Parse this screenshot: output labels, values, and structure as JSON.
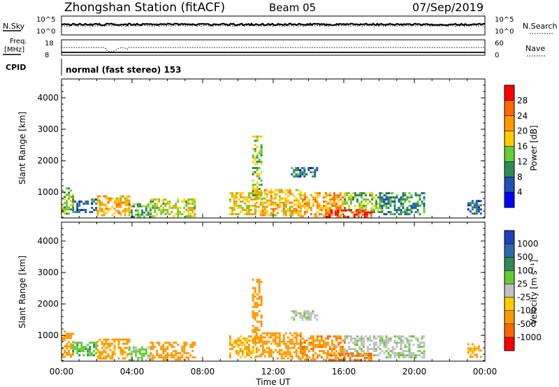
{
  "header": {
    "station": "Zhongshan Station (fitACF)",
    "beam": "Beam 05",
    "date": "07/Sep/2019"
  },
  "noise_panel": {
    "left_label": "N.Sky",
    "right_label": "N.Search",
    "y_top": "10^5",
    "y_bottom": "10^0",
    "right_top": "10^5",
    "right_bottom": "10^0"
  },
  "freq_panel": {
    "label_1": "Freq.",
    "label_2": "[MHz]",
    "y_top": "18",
    "y_bottom": "8",
    "right_label": "Nave",
    "right_top": "60",
    "right_bottom": "0"
  },
  "cpid": {
    "label": "CPID",
    "value": "normal (fast stereo) 153"
  },
  "axes": {
    "ylabel": "Slant Range [km]",
    "xlabel": "Time UT",
    "y_ticks": [
      "1000",
      "2000",
      "3000",
      "4000"
    ],
    "x_ticks": [
      "00:00",
      "04:00",
      "08:00",
      "12:00",
      "16:00",
      "20:00",
      "00:00"
    ]
  },
  "power_scale": {
    "label": "Power [dB]",
    "ticks": [
      "4",
      "8",
      "12",
      "16",
      "20",
      "24",
      "28"
    ],
    "colors": [
      "#0000ff",
      "#2050b8",
      "#2e8b57",
      "#66cc33",
      "#ffcc00",
      "#ff9900",
      "#ff6600",
      "#ff0000"
    ]
  },
  "velocity_scale": {
    "label": "Velocity [m s⁻¹]",
    "ticks": [
      "1000",
      "500",
      "100",
      "25",
      "-25",
      "-100",
      "-500",
      "-1000"
    ],
    "colors": [
      "#2040c0",
      "#2e6aa8",
      "#2e8b57",
      "#66cc33",
      "#c0c0c0",
      "#ffcc00",
      "#ff9900",
      "#ff6600",
      "#ff0000"
    ]
  },
  "chart_data": {
    "type": "heatmap",
    "x_range_hours": [
      0,
      24
    ],
    "y_range_km": [
      180,
      4600
    ],
    "panels": [
      "Power [dB]",
      "Velocity [m s⁻¹]"
    ],
    "echo_regions": [
      {
        "t_start": 0.0,
        "t_end": 0.6,
        "r_min": 350,
        "r_max": 1150,
        "power": 14,
        "velocity": -200
      },
      {
        "t_start": 0.6,
        "t_end": 2.0,
        "r_min": 350,
        "r_max": 800,
        "power": 8,
        "velocity": 80
      },
      {
        "t_start": 2.0,
        "t_end": 3.8,
        "r_min": 250,
        "r_max": 900,
        "power": 20,
        "velocity": -150
      },
      {
        "t_start": 3.8,
        "t_end": 5.0,
        "r_min": 250,
        "r_max": 650,
        "power": 12,
        "velocity": 40
      },
      {
        "t_start": 5.0,
        "t_end": 7.5,
        "r_min": 250,
        "r_max": 800,
        "power": 16,
        "velocity": -300
      },
      {
        "t_start": 9.5,
        "t_end": 11.0,
        "r_min": 300,
        "r_max": 1000,
        "power": 18,
        "velocity": -120
      },
      {
        "t_start": 10.8,
        "t_end": 11.3,
        "r_min": 800,
        "r_max": 2800,
        "power": 14,
        "velocity": -200
      },
      {
        "t_start": 11.0,
        "t_end": 13.5,
        "r_min": 300,
        "r_max": 1100,
        "power": 20,
        "velocity": -250
      },
      {
        "t_start": 13.0,
        "t_end": 14.5,
        "r_min": 1500,
        "r_max": 1800,
        "power": 8,
        "velocity": 10
      },
      {
        "t_start": 13.5,
        "t_end": 16.0,
        "r_min": 250,
        "r_max": 1000,
        "power": 22,
        "velocity": -400
      },
      {
        "t_start": 16.0,
        "t_end": 18.0,
        "r_min": 350,
        "r_max": 1000,
        "power": 14,
        "velocity": 5
      },
      {
        "t_start": 15.0,
        "t_end": 17.5,
        "r_min": 200,
        "r_max": 450,
        "power": 28,
        "velocity": -600
      },
      {
        "t_start": 18.0,
        "t_end": 20.5,
        "r_min": 300,
        "r_max": 1000,
        "power": 10,
        "velocity": 10
      },
      {
        "t_start": 23.0,
        "t_end": 23.8,
        "r_min": 350,
        "r_max": 750,
        "power": 8,
        "velocity": -150
      }
    ]
  }
}
